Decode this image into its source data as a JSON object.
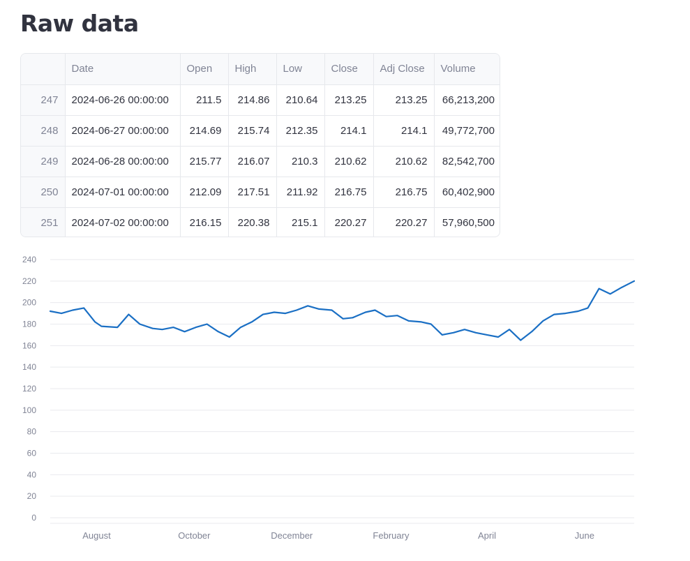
{
  "page": {
    "title": "Raw data"
  },
  "table": {
    "columns": [
      "",
      "Date",
      "Open",
      "High",
      "Low",
      "Close",
      "Adj Close",
      "Volume"
    ],
    "rows": [
      [
        "247",
        "2024-06-26 00:00:00",
        "211.5",
        "214.86",
        "210.64",
        "213.25",
        "213.25",
        "66,213,200"
      ],
      [
        "248",
        "2024-06-27 00:00:00",
        "214.69",
        "215.74",
        "212.35",
        "214.1",
        "214.1",
        "49,772,700"
      ],
      [
        "249",
        "2024-06-28 00:00:00",
        "215.77",
        "216.07",
        "210.3",
        "210.62",
        "210.62",
        "82,542,700"
      ],
      [
        "250",
        "2024-07-01 00:00:00",
        "212.09",
        "217.51",
        "211.92",
        "216.75",
        "216.75",
        "60,402,900"
      ],
      [
        "251",
        "2024-07-02 00:00:00",
        "216.15",
        "220.38",
        "215.1",
        "220.27",
        "220.27",
        "57,960,500"
      ]
    ]
  },
  "chart_data": {
    "type": "line",
    "color": "#1a6fc4",
    "grid": true,
    "ylim": [
      0,
      240
    ],
    "yticks": [
      "0",
      "20",
      "40",
      "60",
      "80",
      "100",
      "120",
      "140",
      "160",
      "180",
      "200",
      "220",
      "240"
    ],
    "xticks": [
      "August",
      "October",
      "December",
      "February",
      "April",
      "June"
    ],
    "x": [
      "2023-07-03",
      "2023-07-10",
      "2023-07-17",
      "2023-07-24",
      "2023-07-31",
      "2023-08-04",
      "2023-08-14",
      "2023-08-21",
      "2023-08-28",
      "2023-09-05",
      "2023-09-11",
      "2023-09-18",
      "2023-09-25",
      "2023-10-02",
      "2023-10-09",
      "2023-10-16",
      "2023-10-23",
      "2023-10-30",
      "2023-11-06",
      "2023-11-13",
      "2023-11-20",
      "2023-11-27",
      "2023-12-04",
      "2023-12-11",
      "2023-12-18",
      "2023-12-26",
      "2024-01-02",
      "2024-01-08",
      "2024-01-16",
      "2024-01-22",
      "2024-01-29",
      "2024-02-05",
      "2024-02-12",
      "2024-02-20",
      "2024-02-26",
      "2024-03-04",
      "2024-03-11",
      "2024-03-18",
      "2024-03-25",
      "2024-04-01",
      "2024-04-08",
      "2024-04-15",
      "2024-04-22",
      "2024-04-29",
      "2024-05-06",
      "2024-05-13",
      "2024-05-20",
      "2024-05-28",
      "2024-06-03",
      "2024-06-10",
      "2024-06-17",
      "2024-06-24",
      "2024-07-02"
    ],
    "series": [
      {
        "values": [
          192,
          190,
          193,
          195,
          182,
          178,
          177,
          189,
          180,
          176,
          175,
          177,
          173,
          177,
          180,
          173,
          168,
          177,
          182,
          189,
          191,
          190,
          193,
          197,
          194,
          193,
          185,
          186,
          191,
          193,
          187,
          188,
          183,
          182,
          180,
          170,
          172,
          175,
          172,
          170,
          168,
          175,
          165,
          173,
          183,
          189,
          190,
          192,
          195,
          213,
          208,
          214,
          220
        ]
      }
    ]
  }
}
